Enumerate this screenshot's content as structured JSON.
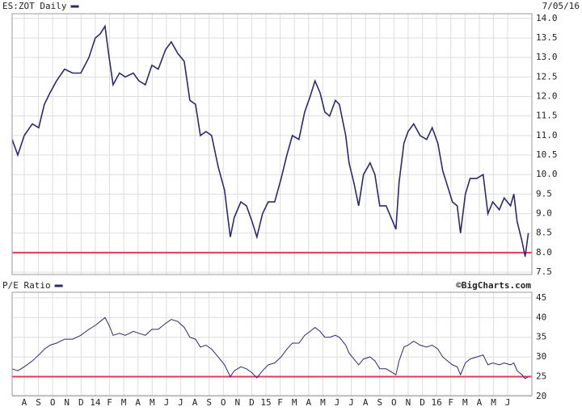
{
  "chart_data": [
    {
      "type": "line",
      "title": "ES:ZOT Daily",
      "date": "7/05/16",
      "ylim": [
        7.44,
        14.12
      ],
      "yticks": [
        {
          "value": 14,
          "label": "14.0"
        },
        {
          "value": 13.5,
          "label": "13.5"
        },
        {
          "value": 13,
          "label": "13.0"
        },
        {
          "value": 12.5,
          "label": "12.5"
        },
        {
          "value": 12,
          "label": "12.0"
        },
        {
          "value": 11.5,
          "label": "11.5"
        },
        {
          "value": 11,
          "label": "11.0"
        },
        {
          "value": 10.5,
          "label": "10.5"
        },
        {
          "value": 10,
          "label": "10.0"
        },
        {
          "value": 9.5,
          "label": "9.5"
        },
        {
          "value": 9,
          "label": "9.0"
        },
        {
          "value": 8.5,
          "label": "8.5"
        },
        {
          "value": 8,
          "label": "8.0"
        },
        {
          "value": 7.5,
          "label": "7.5"
        }
      ],
      "reference_line": {
        "value": 8,
        "color": "#e8385a"
      },
      "grid": true,
      "x": [
        -0.85,
        -0.45,
        0,
        0.57,
        1.02,
        1.42,
        1.82,
        2.27,
        2.84,
        3.41,
        3.98,
        4.55,
        5.0,
        5.34,
        5.68,
        5.97,
        6.25,
        6.7,
        7.1,
        7.67,
        8.07,
        8.52,
        8.98,
        9.43,
        9.94,
        10.34,
        10.8,
        11.25,
        11.65,
        12.05,
        12.39,
        12.78,
        13.18,
        13.64,
        14.09,
        14.49,
        14.77,
        15.23,
        15.63,
        16.02,
        16.36,
        16.76,
        17.16,
        17.61,
        18.07,
        18.47,
        18.86,
        19.32,
        19.72,
        20.11,
        20.45,
        20.8,
        21.14,
        21.48,
        21.88,
        22.16,
        22.61,
        22.84,
        23.18,
        23.52,
        23.86,
        24.32,
        24.66,
        25.0,
        25.45,
        25.91,
        26.14,
        26.36,
        26.7,
        26.99,
        27.39,
        27.84,
        28.3,
        28.69,
        29.09,
        29.43,
        29.77,
        30.11,
        30.45,
        30.68,
        31.02,
        31.36,
        31.82,
        32.27,
        32.61,
        32.95,
        33.41,
        33.75,
        34.2,
        34.43,
        34.66,
        35.0,
        35.23,
        35.45
      ],
      "series": [
        {
          "name": "ES:ZOT Daily",
          "color": "#2b2b6b",
          "values": [
            10.9,
            10.5,
            11.0,
            11.3,
            11.2,
            11.8,
            12.1,
            12.4,
            12.7,
            12.6,
            12.6,
            13.0,
            13.5,
            13.6,
            13.8,
            13.0,
            12.3,
            12.6,
            12.5,
            12.6,
            12.4,
            12.3,
            12.8,
            12.7,
            13.2,
            13.4,
            13.1,
            12.9,
            11.9,
            11.8,
            11.0,
            11.1,
            11.0,
            10.2,
            9.6,
            8.4,
            8.9,
            9.3,
            9.2,
            8.8,
            8.4,
            9.0,
            9.3,
            9.3,
            9.9,
            10.5,
            11.0,
            10.9,
            11.6,
            12.0,
            12.4,
            12.1,
            11.6,
            11.5,
            11.9,
            11.8,
            11.0,
            10.3,
            9.8,
            9.2,
            10.0,
            10.3,
            10.0,
            9.2,
            9.2,
            8.8,
            8.6,
            9.8,
            10.8,
            11.1,
            11.3,
            11.0,
            10.9,
            11.2,
            10.8,
            10.1,
            9.7,
            9.3,
            9.2,
            8.5,
            9.5,
            9.9,
            9.9,
            10.0,
            9.0,
            9.3,
            9.1,
            9.4,
            9.2,
            9.5,
            8.8,
            8.3,
            7.9,
            8.5
          ]
        }
      ]
    },
    {
      "type": "line",
      "title": "P/E Ratio",
      "source": "©BigCharts.com",
      "ylim": [
        20.2,
        46.4
      ],
      "yticks": [
        45,
        40,
        35,
        30,
        25,
        20
      ],
      "reference_line": {
        "value": 25,
        "color": "#e8385a"
      },
      "grid": true,
      "xlim": [
        -0.85,
        35.7
      ],
      "xticks": [
        {
          "value": 0,
          "label": "A"
        },
        {
          "value": 1,
          "label": "S"
        },
        {
          "value": 2,
          "label": "O"
        },
        {
          "value": 3,
          "label": "N"
        },
        {
          "value": 4,
          "label": "D"
        },
        {
          "value": 5,
          "label": "14"
        },
        {
          "value": 6,
          "label": "F"
        },
        {
          "value": 7,
          "label": "M"
        },
        {
          "value": 8,
          "label": "A"
        },
        {
          "value": 9,
          "label": "M"
        },
        {
          "value": 10,
          "label": "J"
        },
        {
          "value": 11,
          "label": "J"
        },
        {
          "value": 12,
          "label": "A"
        },
        {
          "value": 13,
          "label": "S"
        },
        {
          "value": 14,
          "label": "O"
        },
        {
          "value": 15,
          "label": "N"
        },
        {
          "value": 16,
          "label": "D"
        },
        {
          "value": 17,
          "label": "15"
        },
        {
          "value": 18,
          "label": "F"
        },
        {
          "value": 19,
          "label": "M"
        },
        {
          "value": 20,
          "label": "A"
        },
        {
          "value": 21,
          "label": "M"
        },
        {
          "value": 22,
          "label": "J"
        },
        {
          "value": 23,
          "label": "J"
        },
        {
          "value": 24,
          "label": "A"
        },
        {
          "value": 25,
          "label": "S"
        },
        {
          "value": 26,
          "label": "O"
        },
        {
          "value": 27,
          "label": "N"
        },
        {
          "value": 28,
          "label": "D"
        },
        {
          "value": 29,
          "label": "16"
        },
        {
          "value": 30,
          "label": "F"
        },
        {
          "value": 31,
          "label": "M"
        },
        {
          "value": 32,
          "label": "A"
        },
        {
          "value": 33,
          "label": "M"
        },
        {
          "value": 34,
          "label": "J"
        }
      ],
      "series": [
        {
          "name": "P/E Ratio",
          "color": "#2b2b6b",
          "values": [
            27,
            26.5,
            27.5,
            29,
            30.5,
            32,
            33,
            33.5,
            34.5,
            34.5,
            35.5,
            37,
            38,
            39,
            40,
            38,
            35.5,
            36,
            35.5,
            36.5,
            36,
            35.5,
            37,
            37,
            38.5,
            39.5,
            39,
            37.5,
            35,
            34.5,
            32.5,
            33,
            32,
            30,
            28,
            25,
            26.5,
            27.5,
            27,
            26,
            24.7,
            26.5,
            28,
            28.5,
            30,
            32,
            33.5,
            33.5,
            35.5,
            36.5,
            37.5,
            36.5,
            35,
            35,
            35.5,
            35,
            33,
            31,
            29.5,
            28,
            29.5,
            30,
            29,
            27,
            27,
            26,
            25.5,
            29,
            32.5,
            33,
            34,
            33,
            32.5,
            33,
            32,
            30,
            29,
            28,
            27.5,
            25.5,
            28.5,
            29.5,
            30,
            30.5,
            28,
            28.5,
            28,
            28.5,
            28,
            28.5,
            26.5,
            25.5,
            24.5,
            25
          ]
        }
      ]
    }
  ]
}
